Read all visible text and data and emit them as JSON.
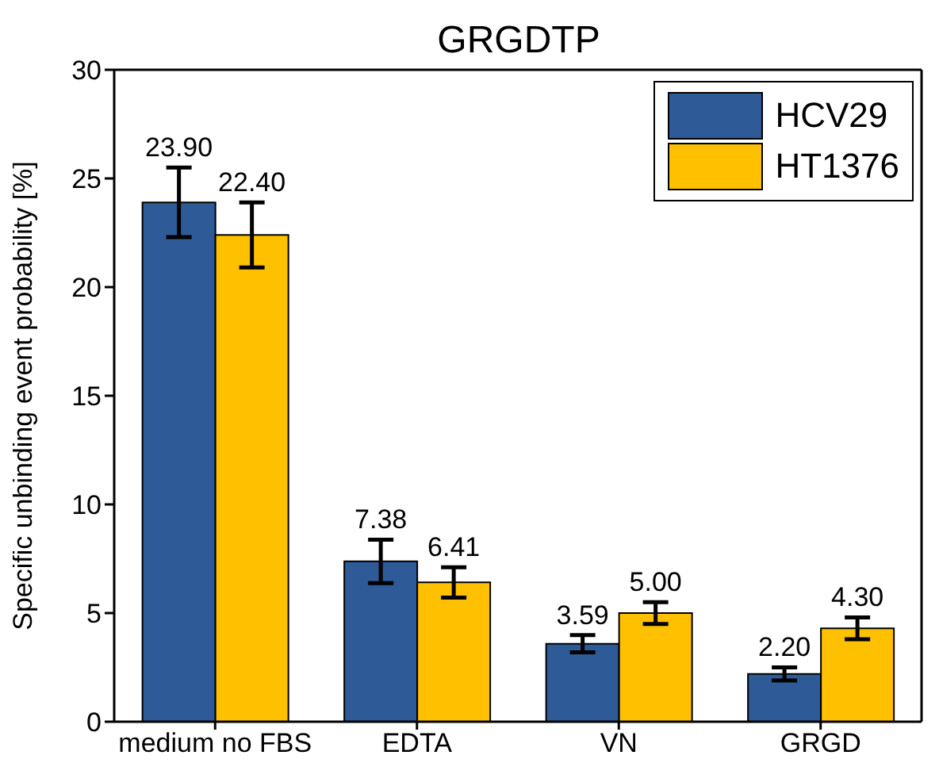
{
  "chart_data": {
    "type": "bar",
    "title": "GRGDTP",
    "ylabel": "Specific unbinding event probability [%]",
    "categories": [
      "medium no FBS",
      "EDTA",
      "VN",
      "GRGD"
    ],
    "series": [
      {
        "name": "HCV29",
        "color": "#2e5a98",
        "values": [
          23.9,
          7.38,
          3.59,
          2.2
        ],
        "errors": [
          1.6,
          1.0,
          0.4,
          0.3
        ],
        "value_labels": [
          "23.90",
          "7.38",
          "3.59",
          "2.20"
        ]
      },
      {
        "name": "HT1376",
        "color": "#ffc000",
        "values": [
          22.4,
          6.41,
          5.0,
          4.3
        ],
        "errors": [
          1.5,
          0.7,
          0.5,
          0.5
        ],
        "value_labels": [
          "22.40",
          "6.41",
          "5.00",
          "4.30"
        ]
      }
    ],
    "ylim": [
      0,
      30
    ],
    "yticks": [
      0,
      5,
      10,
      15,
      20,
      25,
      30
    ],
    "legend": "top right",
    "grid": false
  }
}
